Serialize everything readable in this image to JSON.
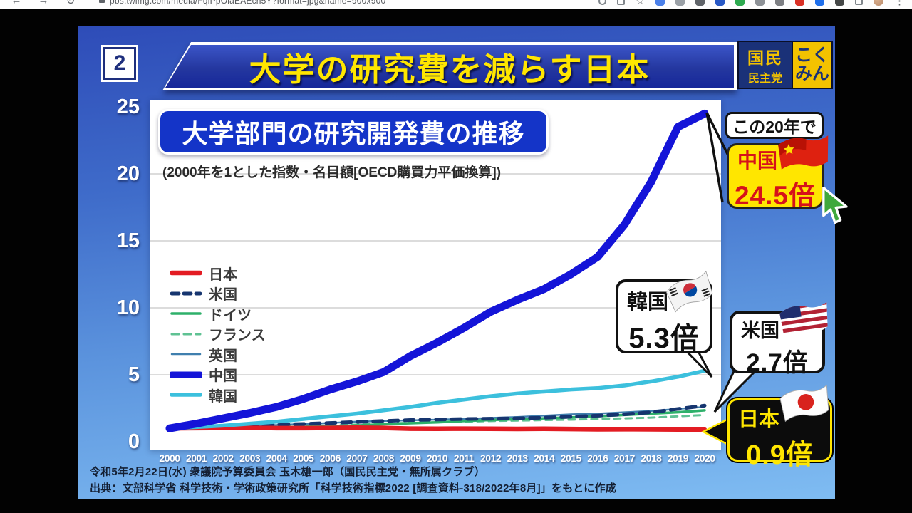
{
  "browser": {
    "url": "pbs.twimg.com/media/FqiPpOiaEAEch5Y?format=jpg&name=900x900",
    "nav_icons": [
      {
        "name": "back-icon",
        "glyph": "←"
      },
      {
        "name": "forward-icon",
        "glyph": "→"
      },
      {
        "name": "reload-icon",
        "glyph": "↻"
      }
    ],
    "action_icons": [
      {
        "name": "search-icon",
        "shape": "ring",
        "color": "#80868b"
      },
      {
        "name": "share-icon",
        "shape": "sqo",
        "color": "#80868b"
      },
      {
        "name": "bookmark-star-icon",
        "shape": "star",
        "color": "#5f6368"
      },
      {
        "name": "ext-chat-icon",
        "shape": "dot",
        "color": "#4a7fe8"
      },
      {
        "name": "ext-m-icon",
        "shape": "dot",
        "color": "#9aa0a6"
      },
      {
        "name": "ext-mask-icon",
        "shape": "dot",
        "color": "#5f6368"
      },
      {
        "name": "ext-funnel-icon",
        "shape": "dot",
        "color": "#2757c4"
      },
      {
        "name": "ext-green-icon",
        "shape": "dot",
        "color": "#2da94f"
      },
      {
        "name": "ext-translate-icon",
        "shape": "dot",
        "color": "#8d9196"
      },
      {
        "name": "ext-info-icon",
        "shape": "dot",
        "color": "#7d7f83"
      },
      {
        "name": "ext-shield-icon",
        "shape": "dot",
        "color": "#d93025"
      },
      {
        "name": "ext-blue-icon",
        "shape": "dot",
        "color": "#1f6feb"
      },
      {
        "name": "extensions-puzzle-icon",
        "shape": "dot",
        "color": "#444746"
      },
      {
        "name": "window-icon",
        "shape": "sqo",
        "color": "#80868b"
      },
      {
        "name": "avatar",
        "shape": "circle",
        "color": "#b98a6a"
      },
      {
        "name": "menu-kebab-icon",
        "shape": "kebab",
        "color": "#5f6368"
      }
    ]
  },
  "slide": {
    "badge": "2",
    "title": "大学の研究費を減らす日本",
    "logo": {
      "left_top": "国民",
      "left_bottom": "民主党",
      "right_top": "こく",
      "right_bottom": "みん"
    },
    "footer_line1": "令和5年2月22日(水) 衆議院予算委員会 玉木雄一郎（国民民主党・無所属クラブ）",
    "footer_line2": "出典：文部科学省 科学技術・学術政策研究所「科学技術指標2022 [調査資料-318/2022年8月]」をもとに作成"
  },
  "chart": {
    "title": "大学部門の研究開発費の推移",
    "subtitle": "(2000年を1とした指数・名目額[OECD購買力平価換算])"
  },
  "callouts": {
    "period": "この20年で",
    "china": {
      "label": "中国",
      "value": "24.5倍"
    },
    "korea": {
      "label": "韓国",
      "value": "5.3倍"
    },
    "us": {
      "label": "米国",
      "value": "2.7倍"
    },
    "japan": {
      "label": "日本",
      "value": "0.9倍"
    }
  },
  "chart_data": {
    "type": "line",
    "title": "大学部門の研究開発費の推移",
    "subtitle": "(2000年を1とした指数・名目額[OECD購買力平価換算])",
    "x": [
      2000,
      2001,
      2002,
      2003,
      2004,
      2005,
      2006,
      2007,
      2008,
      2009,
      2010,
      2011,
      2012,
      2013,
      2014,
      2015,
      2016,
      2017,
      2018,
      2019,
      2020
    ],
    "ylim": [
      0,
      25
    ],
    "yticks": [
      0,
      5,
      10,
      15,
      20,
      25
    ],
    "grid_values": [
      5,
      10,
      15,
      20
    ],
    "legend_position": "left-middle",
    "series": [
      {
        "id": "japan",
        "name": "日本",
        "color": "#e31c23",
        "width": 6.5,
        "dash": null,
        "final_multiplier": "0.9倍",
        "values": [
          1.0,
          1.02,
          1.03,
          1.03,
          1.02,
          1.02,
          1.03,
          1.05,
          1.03,
          0.98,
          0.97,
          0.98,
          0.97,
          0.96,
          0.97,
          0.95,
          0.93,
          0.94,
          0.93,
          0.92,
          0.9
        ]
      },
      {
        "id": "us",
        "name": "米国",
        "color": "#16356f",
        "width": 5,
        "dash": "13 9",
        "final_multiplier": "2.7倍",
        "values": [
          1.0,
          1.08,
          1.15,
          1.22,
          1.28,
          1.33,
          1.4,
          1.48,
          1.55,
          1.62,
          1.66,
          1.7,
          1.72,
          1.75,
          1.8,
          1.87,
          1.95,
          2.05,
          2.2,
          2.45,
          2.7
        ]
      },
      {
        "id": "germany",
        "name": "ドイツ",
        "color": "#2eb06a",
        "width": 3.5,
        "dash": null,
        "values": [
          1.0,
          1.02,
          1.05,
          1.08,
          1.1,
          1.12,
          1.16,
          1.22,
          1.3,
          1.38,
          1.45,
          1.55,
          1.62,
          1.68,
          1.75,
          1.82,
          1.9,
          2.0,
          2.1,
          2.2,
          2.35
        ]
      },
      {
        "id": "france",
        "name": "フランス",
        "color": "#5fc293",
        "width": 3,
        "dash": "9 7",
        "values": [
          1.0,
          1.05,
          1.1,
          1.12,
          1.15,
          1.18,
          1.22,
          1.28,
          1.35,
          1.42,
          1.45,
          1.5,
          1.55,
          1.58,
          1.62,
          1.65,
          1.7,
          1.75,
          1.8,
          1.9,
          2.0
        ]
      },
      {
        "id": "uk",
        "name": "英国",
        "color": "#3f7fae",
        "width": 2.5,
        "dash": null,
        "values": [
          1.0,
          1.05,
          1.12,
          1.18,
          1.25,
          1.32,
          1.4,
          1.5,
          1.55,
          1.6,
          1.65,
          1.7,
          1.78,
          1.85,
          1.95,
          2.05,
          2.1,
          2.2,
          2.3,
          2.45,
          2.6
        ]
      },
      {
        "id": "china",
        "name": "中国",
        "color": "#1414d8",
        "width": 11,
        "dash": null,
        "final_multiplier": "24.5倍",
        "values": [
          1.0,
          1.35,
          1.75,
          2.15,
          2.6,
          3.2,
          3.9,
          4.5,
          5.2,
          6.4,
          7.4,
          8.5,
          9.7,
          10.6,
          11.4,
          12.5,
          13.8,
          16.2,
          19.4,
          23.5,
          24.5
        ]
      },
      {
        "id": "korea",
        "name": "韓国",
        "color": "#3cc0dd",
        "width": 5.5,
        "dash": null,
        "final_multiplier": "5.3倍",
        "values": [
          1.0,
          1.1,
          1.2,
          1.35,
          1.5,
          1.7,
          1.9,
          2.1,
          2.35,
          2.6,
          2.9,
          3.15,
          3.4,
          3.6,
          3.75,
          3.9,
          4.0,
          4.2,
          4.5,
          4.85,
          5.3
        ]
      }
    ],
    "draw_order": [
      "france",
      "uk",
      "germany",
      "us",
      "japan",
      "korea",
      "china"
    ]
  }
}
